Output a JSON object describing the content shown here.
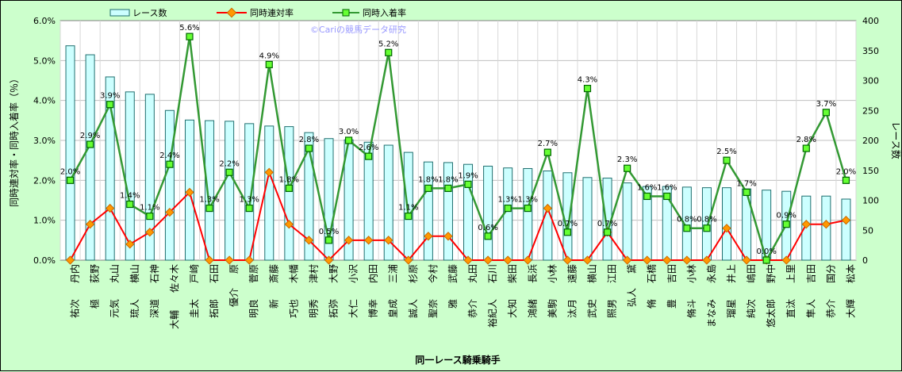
{
  "chart_data": {
    "type": "bar",
    "title": "",
    "xlabel": "同一レース騎乗騎手",
    "ylabel_left": "同時連対率・同時入着率（％）",
    "ylabel_right": "レース数",
    "watermark": "©Cariの競馬データ研究",
    "ylim_left": [
      0,
      6
    ],
    "ylim_right": [
      0,
      400
    ],
    "left_ticks": [
      "0.0%",
      "1.0%",
      "2.0%",
      "3.0%",
      "4.0%",
      "5.0%",
      "6.0%"
    ],
    "right_ticks": [
      "0",
      "50",
      "100",
      "150",
      "200",
      "250",
      "300",
      "350",
      "400"
    ],
    "legend_position": "top",
    "grid": true,
    "categories": [
      [
        "丹内",
        "祐次"
      ],
      [
        "荻野",
        "極"
      ],
      [
        "丸山",
        "元気"
      ],
      [
        "横山",
        "琉人"
      ],
      [
        "石神",
        "深道"
      ],
      [
        "佐々木",
        "大輔"
      ],
      [
        "戸崎",
        "圭太"
      ],
      [
        "石田",
        "拓郎"
      ],
      [
        "原",
        "優介"
      ],
      [
        "菅原",
        "明良"
      ],
      [
        "斎藤",
        "新"
      ],
      [
        "木幡",
        "巧也"
      ],
      [
        "津村",
        "明秀"
      ],
      [
        "大野",
        "拓弥"
      ],
      [
        "小沢",
        "大仁"
      ],
      [
        "内田",
        "博幸"
      ],
      [
        "三浦",
        "皇成"
      ],
      [
        "杉原",
        "誠人"
      ],
      [
        "今村",
        "聖奈"
      ],
      [
        "武藤",
        "雅"
      ],
      [
        "丸田",
        "恭介"
      ],
      [
        "石川",
        "裕紀人"
      ],
      [
        "柴田",
        "大知"
      ],
      [
        "長浜",
        "鴻緒"
      ],
      [
        "小林",
        "美駒"
      ],
      [
        "遠藤",
        "汰月"
      ],
      [
        "横山",
        "武史"
      ],
      [
        "江田",
        "照男"
      ],
      [
        "黛",
        "弘人"
      ],
      [
        "石橋",
        "脩"
      ],
      [
        "吉田",
        "豊"
      ],
      [
        "小林",
        "脩斗"
      ],
      [
        "永島",
        "まなみ"
      ],
      [
        "井上",
        "瑠星"
      ],
      [
        "嶋田",
        "純次"
      ],
      [
        "野中",
        "悠太郎"
      ],
      [
        "上里",
        "直汰"
      ],
      [
        "吉田",
        "隼人"
      ],
      [
        "国分",
        "恭介"
      ],
      [
        "松本",
        "大輝"
      ]
    ],
    "series": [
      {
        "name": "レース数",
        "kind": "bar",
        "axis": "right",
        "color": "#ccffff",
        "values": [
          358,
          343,
          306,
          281,
          277,
          250,
          234,
          233,
          232,
          228,
          224,
          223,
          213,
          203,
          201,
          197,
          192,
          180,
          164,
          163,
          160,
          157,
          154,
          153,
          149,
          146,
          138,
          137,
          129,
          123,
          123,
          122,
          121,
          121,
          119,
          117,
          115,
          107,
          107,
          102
        ]
      },
      {
        "name": "同時連対率",
        "kind": "line",
        "axis": "left",
        "color": "#ff0000",
        "marker_color": "#ff9900",
        "values": [
          0.0,
          0.9,
          1.3,
          0.4,
          0.7,
          1.2,
          1.7,
          0.0,
          0.0,
          0.0,
          2.2,
          0.9,
          0.5,
          0.0,
          0.5,
          0.5,
          0.5,
          0.0,
          0.6,
          0.6,
          0.0,
          0.0,
          0.0,
          0.0,
          1.3,
          0.0,
          0.0,
          0.7,
          0.0,
          0.0,
          0.0,
          0.0,
          0.0,
          0.8,
          0.0,
          0.0,
          0.0,
          0.9,
          0.9,
          1.0
        ]
      },
      {
        "name": "同時入着率",
        "kind": "line",
        "axis": "left",
        "color": "#339933",
        "marker_color": "#66ff33",
        "values": [
          2.0,
          2.9,
          3.9,
          1.4,
          1.1,
          2.4,
          5.6,
          1.3,
          2.2,
          1.3,
          4.9,
          1.8,
          2.8,
          0.5,
          3.0,
          2.6,
          5.2,
          1.1,
          1.8,
          1.8,
          1.9,
          0.6,
          1.3,
          1.3,
          2.7,
          0.7,
          4.3,
          0.7,
          2.3,
          1.6,
          1.6,
          0.8,
          0.8,
          2.5,
          1.7,
          0.0,
          0.9,
          2.8,
          3.7,
          2.0
        ],
        "labels": [
          "2.0%",
          "2.9%",
          "3.9%",
          "1.4%",
          "1.1%",
          "2.4%",
          "5.6%",
          "1.3%",
          "2.2%",
          "1.3%",
          "4.9%",
          "1.8%",
          "2.8%",
          "0.5%",
          "3.0%",
          "2.6%",
          "5.2%",
          "1.1%",
          "1.8%",
          "1.8%",
          "1.9%",
          "0.6%",
          "1.3%",
          "1.3%",
          "2.7%",
          "0.7%",
          "4.3%",
          "0.7%",
          "2.3%",
          "1.6%",
          "1.6%",
          "0.8%",
          "0.8%",
          "2.5%",
          "1.7%",
          "0.0%",
          "0.9%",
          "2.8%",
          "3.7%",
          "2.0%"
        ]
      }
    ]
  }
}
